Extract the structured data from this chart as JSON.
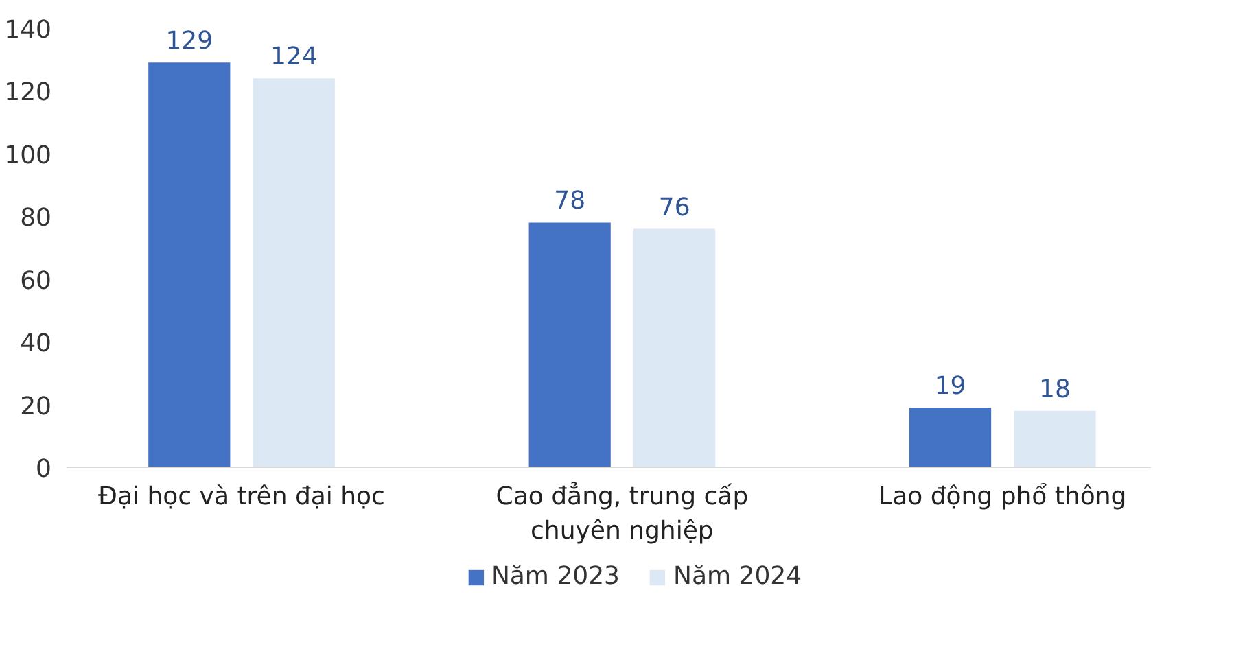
{
  "chart_data": {
    "type": "bar",
    "categories": [
      "Đại học và trên đại học",
      "Cao đẳng, trung cấp chuyên nghiệp",
      "Lao động phổ thông"
    ],
    "series": [
      {
        "name": "Năm 2023",
        "color": "#4472c4",
        "values": [
          129,
          78,
          19
        ]
      },
      {
        "name": "Năm 2024",
        "color": "#dde8f5",
        "values": [
          124,
          76,
          18
        ]
      }
    ],
    "ylim": [
      0,
      140
    ],
    "yticks": [
      0,
      20,
      40,
      60,
      80,
      100,
      120,
      140
    ],
    "grid": false,
    "legend": "bottom",
    "data_labels": true
  }
}
